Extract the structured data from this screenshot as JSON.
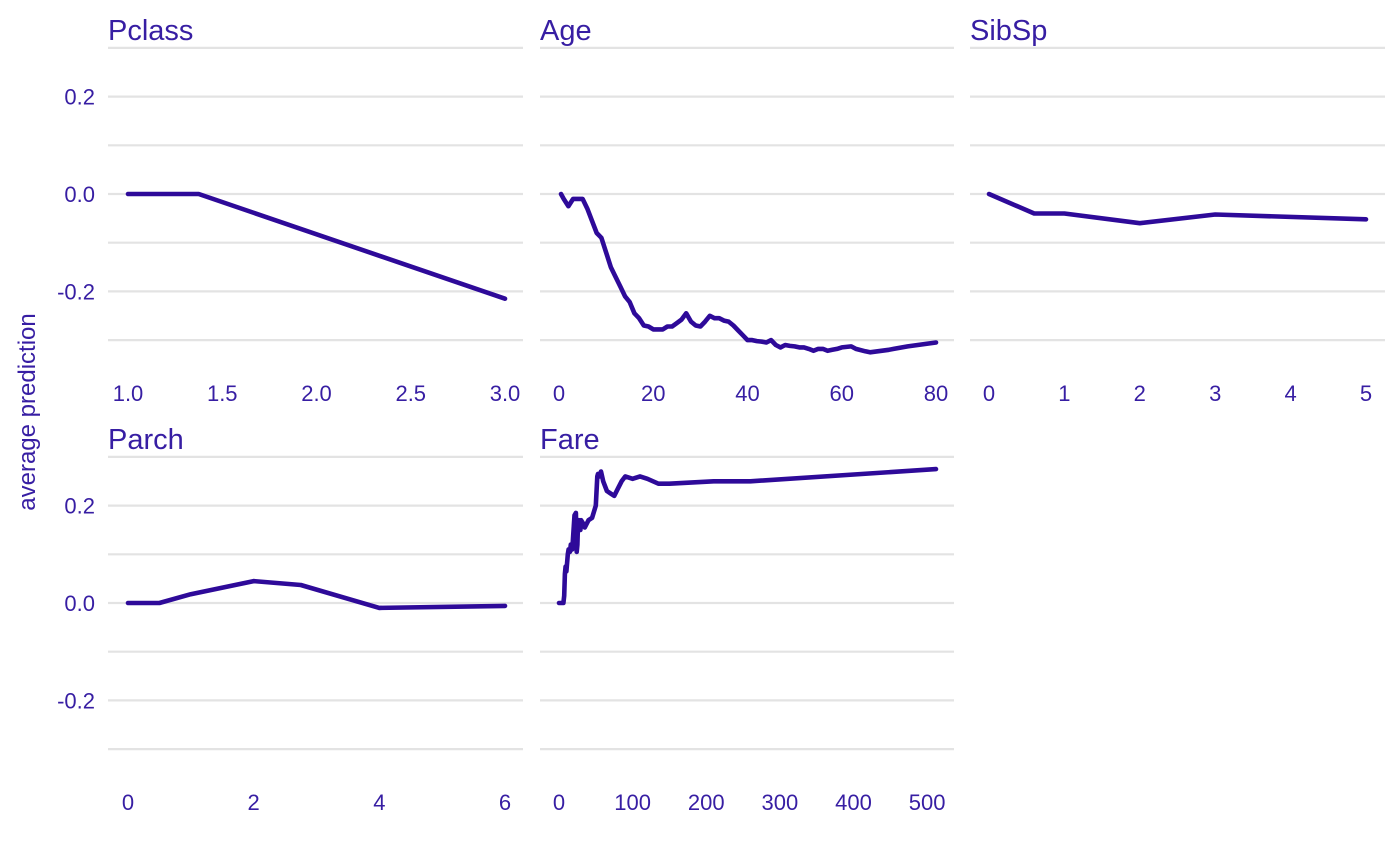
{
  "colors": {
    "text": "#371ea3",
    "line": "#2e0a99",
    "grid": "#e3e3e3"
  },
  "chart_data": {
    "type": "line",
    "ylabel": "average prediction",
    "ylim": [
      -0.3,
      0.3
    ],
    "y_ticks": [
      -0.2,
      0.0,
      0.2
    ],
    "y_tick_labels": [
      "-0.2",
      "0.0",
      "0.2"
    ],
    "y_gridlines": [
      -0.3,
      -0.2,
      -0.1,
      0.0,
      0.1,
      0.2,
      0.3
    ],
    "grid": "horizontal",
    "panels": [
      {
        "title": "Pclass",
        "xlim": [
          1.0,
          3.0
        ],
        "x_ticks": [
          1.0,
          1.5,
          2.0,
          2.5,
          3.0
        ],
        "x_tick_labels": [
          "1.0",
          "1.5",
          "2.0",
          "2.5",
          "3.0"
        ],
        "x": [
          1.0,
          1.375,
          3.0
        ],
        "y": [
          0.0,
          0.0,
          -0.215
        ]
      },
      {
        "title": "Age",
        "xlim": [
          0,
          80
        ],
        "x_ticks": [
          0,
          20,
          40,
          60,
          80
        ],
        "x_tick_labels": [
          "0",
          "20",
          "40",
          "60",
          "80"
        ],
        "x": [
          0.42,
          1,
          2,
          3,
          4,
          5,
          6,
          7,
          8,
          9,
          10,
          11,
          12,
          13,
          14,
          15,
          16,
          17,
          18,
          19,
          20,
          21,
          22,
          23,
          24,
          25,
          26,
          27,
          28,
          29,
          30,
          31,
          32,
          33,
          34,
          35,
          36,
          37,
          38,
          39,
          40,
          41,
          42,
          43,
          44,
          45,
          46,
          47,
          48,
          49,
          50,
          51,
          52,
          53,
          54,
          55,
          56,
          57,
          58,
          59,
          60,
          62,
          63,
          65,
          66,
          70,
          71,
          74,
          80
        ],
        "y": [
          0.0,
          -0.01,
          -0.025,
          -0.01,
          -0.01,
          -0.01,
          -0.03,
          -0.055,
          -0.08,
          -0.09,
          -0.12,
          -0.15,
          -0.17,
          -0.19,
          -0.21,
          -0.222,
          -0.245,
          -0.255,
          -0.27,
          -0.272,
          -0.278,
          -0.278,
          -0.278,
          -0.272,
          -0.272,
          -0.265,
          -0.258,
          -0.245,
          -0.262,
          -0.27,
          -0.272,
          -0.262,
          -0.25,
          -0.255,
          -0.255,
          -0.26,
          -0.262,
          -0.27,
          -0.28,
          -0.29,
          -0.3,
          -0.3,
          -0.302,
          -0.303,
          -0.305,
          -0.3,
          -0.31,
          -0.315,
          -0.31,
          -0.312,
          -0.313,
          -0.315,
          -0.315,
          -0.318,
          -0.322,
          -0.318,
          -0.318,
          -0.322,
          -0.32,
          -0.318,
          -0.315,
          -0.313,
          -0.318,
          -0.323,
          -0.325,
          -0.32,
          -0.318,
          -0.313,
          -0.305
        ]
      },
      {
        "title": "SibSp",
        "xlim": [
          0,
          5
        ],
        "x_ticks": [
          0,
          1,
          2,
          3,
          4,
          5
        ],
        "x_tick_labels": [
          "0",
          "1",
          "2",
          "3",
          "4",
          "5"
        ],
        "x": [
          0,
          0.6,
          1,
          2,
          3,
          5
        ],
        "y": [
          0.0,
          -0.04,
          -0.04,
          -0.06,
          -0.042,
          -0.052
        ]
      },
      {
        "title": "Parch",
        "xlim": [
          0,
          6
        ],
        "x_ticks": [
          0,
          2,
          4,
          6
        ],
        "x_tick_labels": [
          "0",
          "2",
          "4",
          "6"
        ],
        "x": [
          0,
          0.5,
          1,
          2,
          2.75,
          4,
          6
        ],
        "y": [
          0.0,
          0.0,
          0.018,
          0.045,
          0.037,
          -0.01,
          -0.006
        ]
      },
      {
        "title": "Fare",
        "xlim": [
          0,
          512
        ],
        "x_ticks": [
          0,
          100,
          200,
          300,
          400,
          500
        ],
        "x_tick_labels": [
          "0",
          "100",
          "200",
          "300",
          "400",
          "500"
        ],
        "x": [
          0,
          4,
          6,
          7,
          8,
          9,
          10,
          12,
          13,
          15,
          16,
          18,
          21,
          23,
          24,
          25,
          26,
          27,
          28,
          29,
          30,
          32,
          35,
          40,
          45,
          50,
          52,
          53,
          55,
          57,
          60,
          65,
          70,
          75,
          80,
          85,
          90,
          100,
          110,
          120,
          135,
          150,
          210,
          260,
          512
        ],
        "y": [
          0.0,
          0.0,
          0.0,
          0.015,
          0.06,
          0.075,
          0.065,
          0.1,
          0.11,
          0.105,
          0.12,
          0.11,
          0.18,
          0.185,
          0.105,
          0.12,
          0.17,
          0.17,
          0.16,
          0.15,
          0.17,
          0.165,
          0.155,
          0.17,
          0.175,
          0.2,
          0.26,
          0.265,
          0.26,
          0.27,
          0.25,
          0.23,
          0.225,
          0.22,
          0.235,
          0.25,
          0.26,
          0.255,
          0.26,
          0.255,
          0.245,
          0.245,
          0.25,
          0.25,
          0.275
        ]
      }
    ]
  }
}
